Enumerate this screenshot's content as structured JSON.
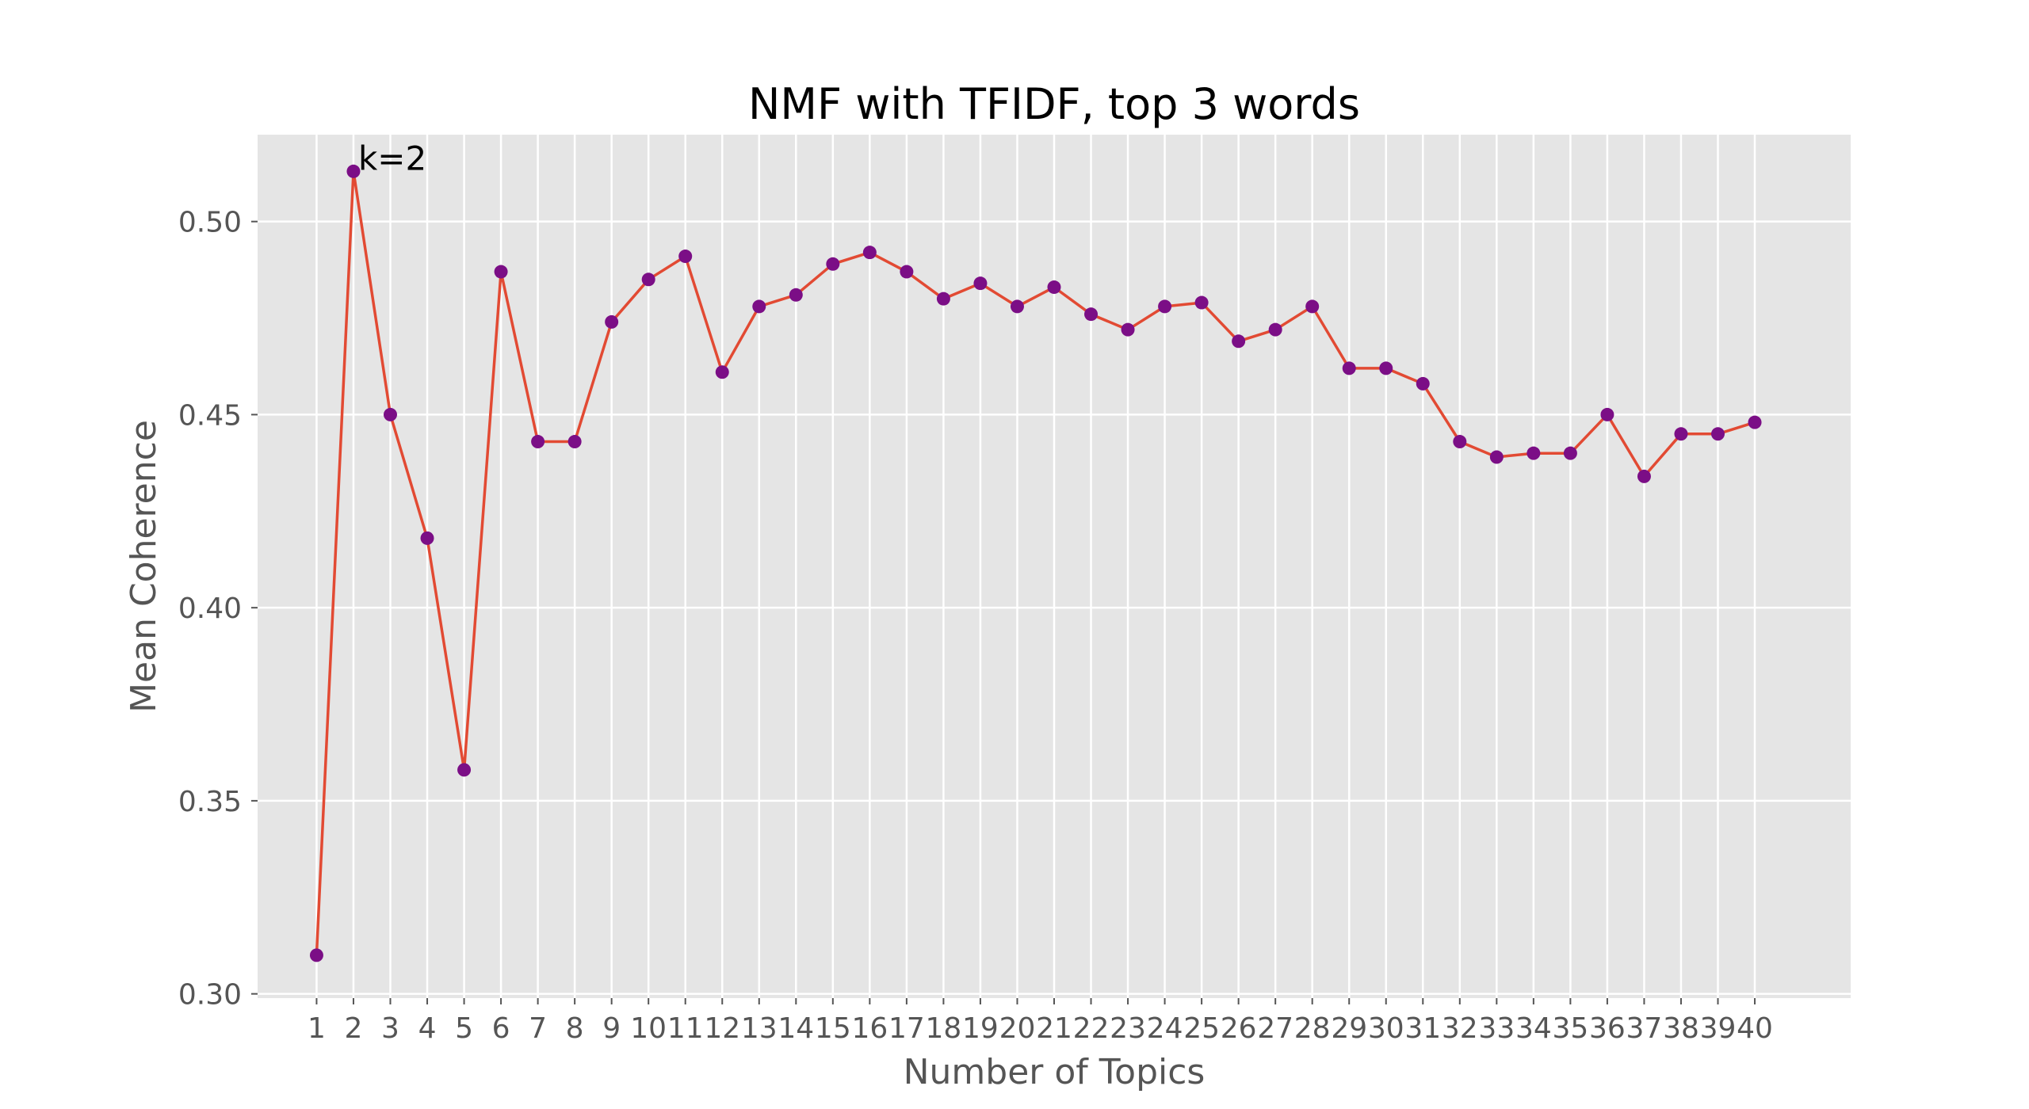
{
  "chart_data": {
    "type": "line",
    "title": "NMF with TFIDF, top 3 words",
    "xlabel": "Number of Topics",
    "ylabel": "Mean Coherence",
    "x": [
      1,
      2,
      3,
      4,
      5,
      6,
      7,
      8,
      9,
      10,
      11,
      12,
      13,
      14,
      15,
      16,
      17,
      18,
      19,
      20,
      21,
      22,
      23,
      24,
      25,
      26,
      27,
      28,
      29,
      30,
      31,
      32,
      33,
      34,
      35,
      36,
      37,
      38,
      39,
      40
    ],
    "series": [
      {
        "values": [
          0.31,
          0.513,
          0.45,
          0.418,
          0.358,
          0.487,
          0.443,
          0.443,
          0.474,
          0.485,
          0.491,
          0.461,
          0.478,
          0.481,
          0.489,
          0.492,
          0.487,
          0.48,
          0.484,
          0.478,
          0.483,
          0.476,
          0.472,
          0.478,
          0.479,
          0.469,
          0.472,
          0.478,
          0.462,
          0.462,
          0.458,
          0.443,
          0.439,
          0.44,
          0.44,
          0.45,
          0.434,
          0.445,
          0.445,
          0.448
        ],
        "line_color": "#E24A33",
        "marker_color": "#7B0E86"
      }
    ],
    "yticks": [
      0.3,
      0.35,
      0.4,
      0.45,
      0.5
    ],
    "ytick_labels": [
      "0.30",
      "0.35",
      "0.40",
      "0.45",
      "0.50"
    ],
    "xticks": [
      1,
      2,
      3,
      4,
      5,
      6,
      7,
      8,
      9,
      10,
      11,
      12,
      13,
      14,
      15,
      16,
      17,
      18,
      19,
      20,
      21,
      22,
      23,
      24,
      25,
      26,
      27,
      28,
      29,
      30,
      31,
      32,
      33,
      34,
      35,
      36,
      37,
      38,
      39,
      40
    ],
    "xlim": [
      -0.6,
      42.6
    ],
    "ylim": [
      0.2989,
      0.5225
    ],
    "grid": true,
    "background_color": "#E5E5E5",
    "grid_color": "#FFFFFF",
    "annotations": [
      {
        "text": "k=2",
        "x": 2,
        "y": 0.513
      }
    ]
  }
}
